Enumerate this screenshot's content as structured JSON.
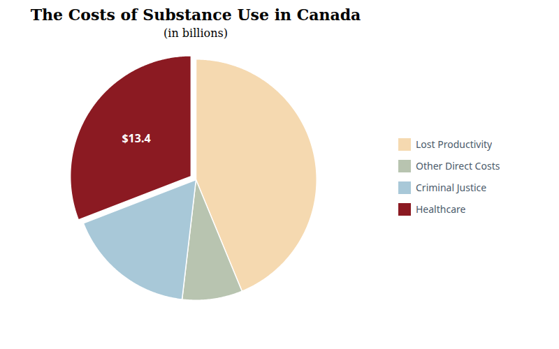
{
  "chart_data": {
    "type": "pie",
    "title": "The Costs of Substance Use in Canada",
    "subtitle": "(in billions)",
    "categories": [
      "Lost Productivity",
      "Other Direct Costs",
      "Criminal Justice",
      "Healthcare"
    ],
    "values": [
      19.0,
      3.5,
      7.5,
      13.4
    ],
    "colors": [
      "#F5D9B0",
      "#B8C4B0",
      "#A8C8D8",
      "#8B1A22"
    ],
    "legend": "right",
    "annotations": [
      {
        "text": "$13.4",
        "category": "Healthcare",
        "color": "#ffffff"
      }
    ]
  }
}
